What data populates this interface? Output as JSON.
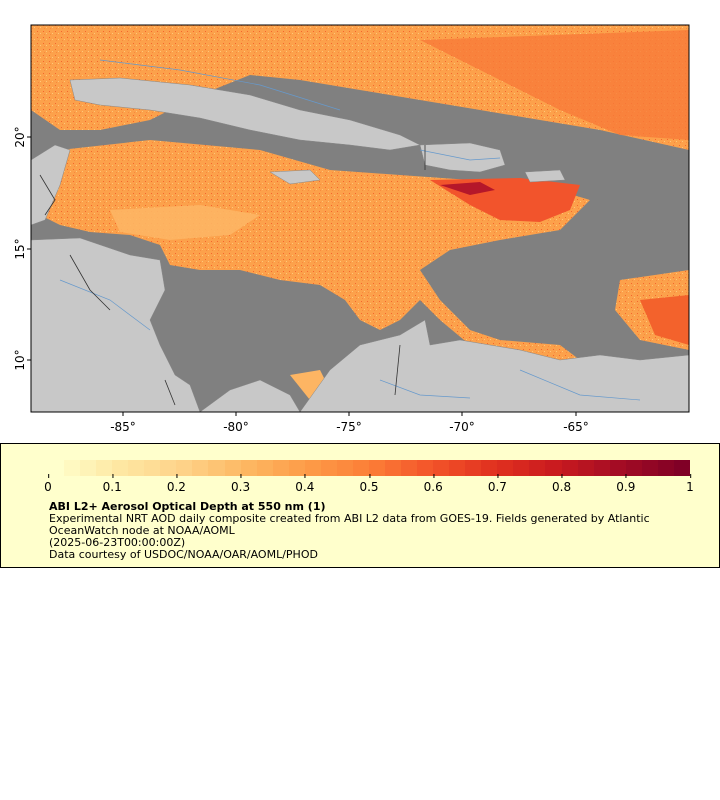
{
  "map": {
    "lat_ticks": [
      "20°",
      "15°",
      "10°"
    ],
    "lon_ticks": [
      "-85°",
      "-80°",
      "-75°",
      "-70°",
      "-65°"
    ],
    "colors": {
      "missing": "#808080",
      "land": "#c8c8c8",
      "rivers": "#6699cc",
      "borders": "#333333"
    }
  },
  "legend": {
    "colorbar_ticks": [
      "0",
      "0.1",
      "0.2",
      "0.3",
      "0.4",
      "0.5",
      "0.6",
      "0.7",
      "0.8",
      "0.9",
      "1"
    ],
    "colorbar_colors": [
      "#ffffcc",
      "#fee8a3",
      "#fed38a",
      "#fdb863",
      "#fd9c48",
      "#fc7e37",
      "#f3542a",
      "#e1311f",
      "#c91a1f",
      "#a30c24",
      "#800026"
    ],
    "title": "ABI L2+ Aerosol Optical Depth at 550 nm (1)",
    "line1": "Experimental NRT AOD daily composite created from ABI L2 data from GOES-19. Fields generated by Atlantic OceanWatch node at NOAA/AOML",
    "line2": "(2025-06-23T00:00:00Z)",
    "line3": "Data courtesy of USDOC/NOAA/OAR/AOML/PHOD"
  }
}
